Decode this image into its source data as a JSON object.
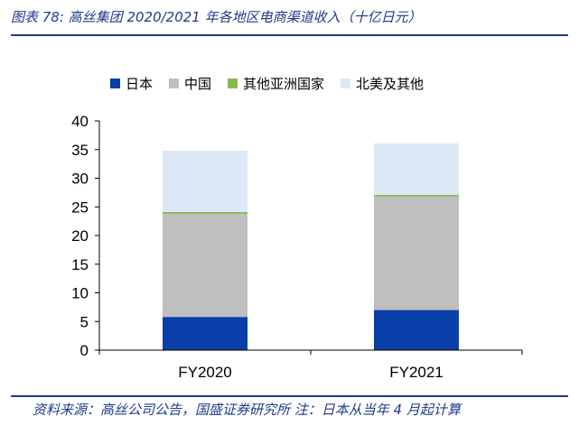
{
  "header": {
    "title": "图表 78:  高丝集团 2020/2021 年各地区电商渠道收入（十亿日元）"
  },
  "footer": {
    "source": "资料来源：高丝公司公告，国盛证券研究所  注：日本从当年 4 月起计算"
  },
  "chart_data": {
    "type": "bar",
    "stacked": true,
    "title": "",
    "xlabel": "",
    "ylabel": "",
    "categories": [
      "FY2020",
      "FY2021"
    ],
    "ylim": [
      0,
      40
    ],
    "yticks": [
      0,
      5,
      10,
      15,
      20,
      25,
      30,
      35,
      40
    ],
    "legend_position": "top",
    "series": [
      {
        "name": "日本",
        "color": "#0a3ea8",
        "values": [
          5.8,
          7.0
        ]
      },
      {
        "name": "中国",
        "color": "#bfbfbf",
        "values": [
          18.0,
          19.8
        ]
      },
      {
        "name": "其他亚洲国家",
        "color": "#8ab84e",
        "values": [
          0.3,
          0.3
        ]
      },
      {
        "name": "北美及其他",
        "color": "#dce8f5",
        "values": [
          10.7,
          9.0
        ]
      }
    ]
  }
}
